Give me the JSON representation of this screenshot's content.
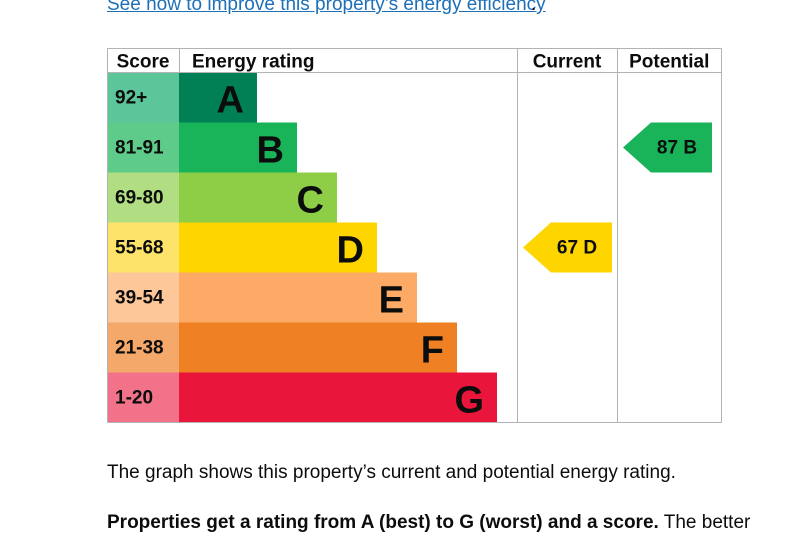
{
  "link": {
    "text": "See how to improve this property’s energy efficiency",
    "trailing": "."
  },
  "chart_data": {
    "type": "bar",
    "headers": {
      "score": "Score",
      "rating": "Energy rating",
      "current": "Current",
      "potential": "Potential"
    },
    "bands": [
      {
        "letter": "A",
        "range": "92+",
        "min": 92,
        "max": 100,
        "color": "#008054",
        "score_bg": "#5cc69a"
      },
      {
        "letter": "B",
        "range": "81-91",
        "min": 81,
        "max": 91,
        "color": "#19b459",
        "score_bg": "#5fcb8b"
      },
      {
        "letter": "C",
        "range": "69-80",
        "min": 69,
        "max": 80,
        "color": "#8dce46",
        "score_bg": "#b2de83"
      },
      {
        "letter": "D",
        "range": "55-68",
        "min": 55,
        "max": 68,
        "color": "#ffd500",
        "score_bg": "#fde36a"
      },
      {
        "letter": "E",
        "range": "39-54",
        "min": 39,
        "max": 54,
        "color": "#fcaa65",
        "score_bg": "#fdc79a"
      },
      {
        "letter": "F",
        "range": "21-38",
        "min": 21,
        "max": 38,
        "color": "#ef8023",
        "score_bg": "#f4a96a"
      },
      {
        "letter": "G",
        "range": "1-20",
        "min": 1,
        "max": 20,
        "color": "#e9153b",
        "score_bg": "#f2728a"
      }
    ],
    "current": {
      "score": 67,
      "letter": "D",
      "label": "67  D",
      "color": "#ffd500"
    },
    "potential": {
      "score": 87,
      "letter": "B",
      "label": "87  B",
      "color": "#19b459"
    }
  },
  "description": "The graph shows this property’s current and potential energy rating.",
  "description2": {
    "bold": "Properties get a rating from A (best) to G (worst) and a score.",
    "rest": " The better"
  }
}
